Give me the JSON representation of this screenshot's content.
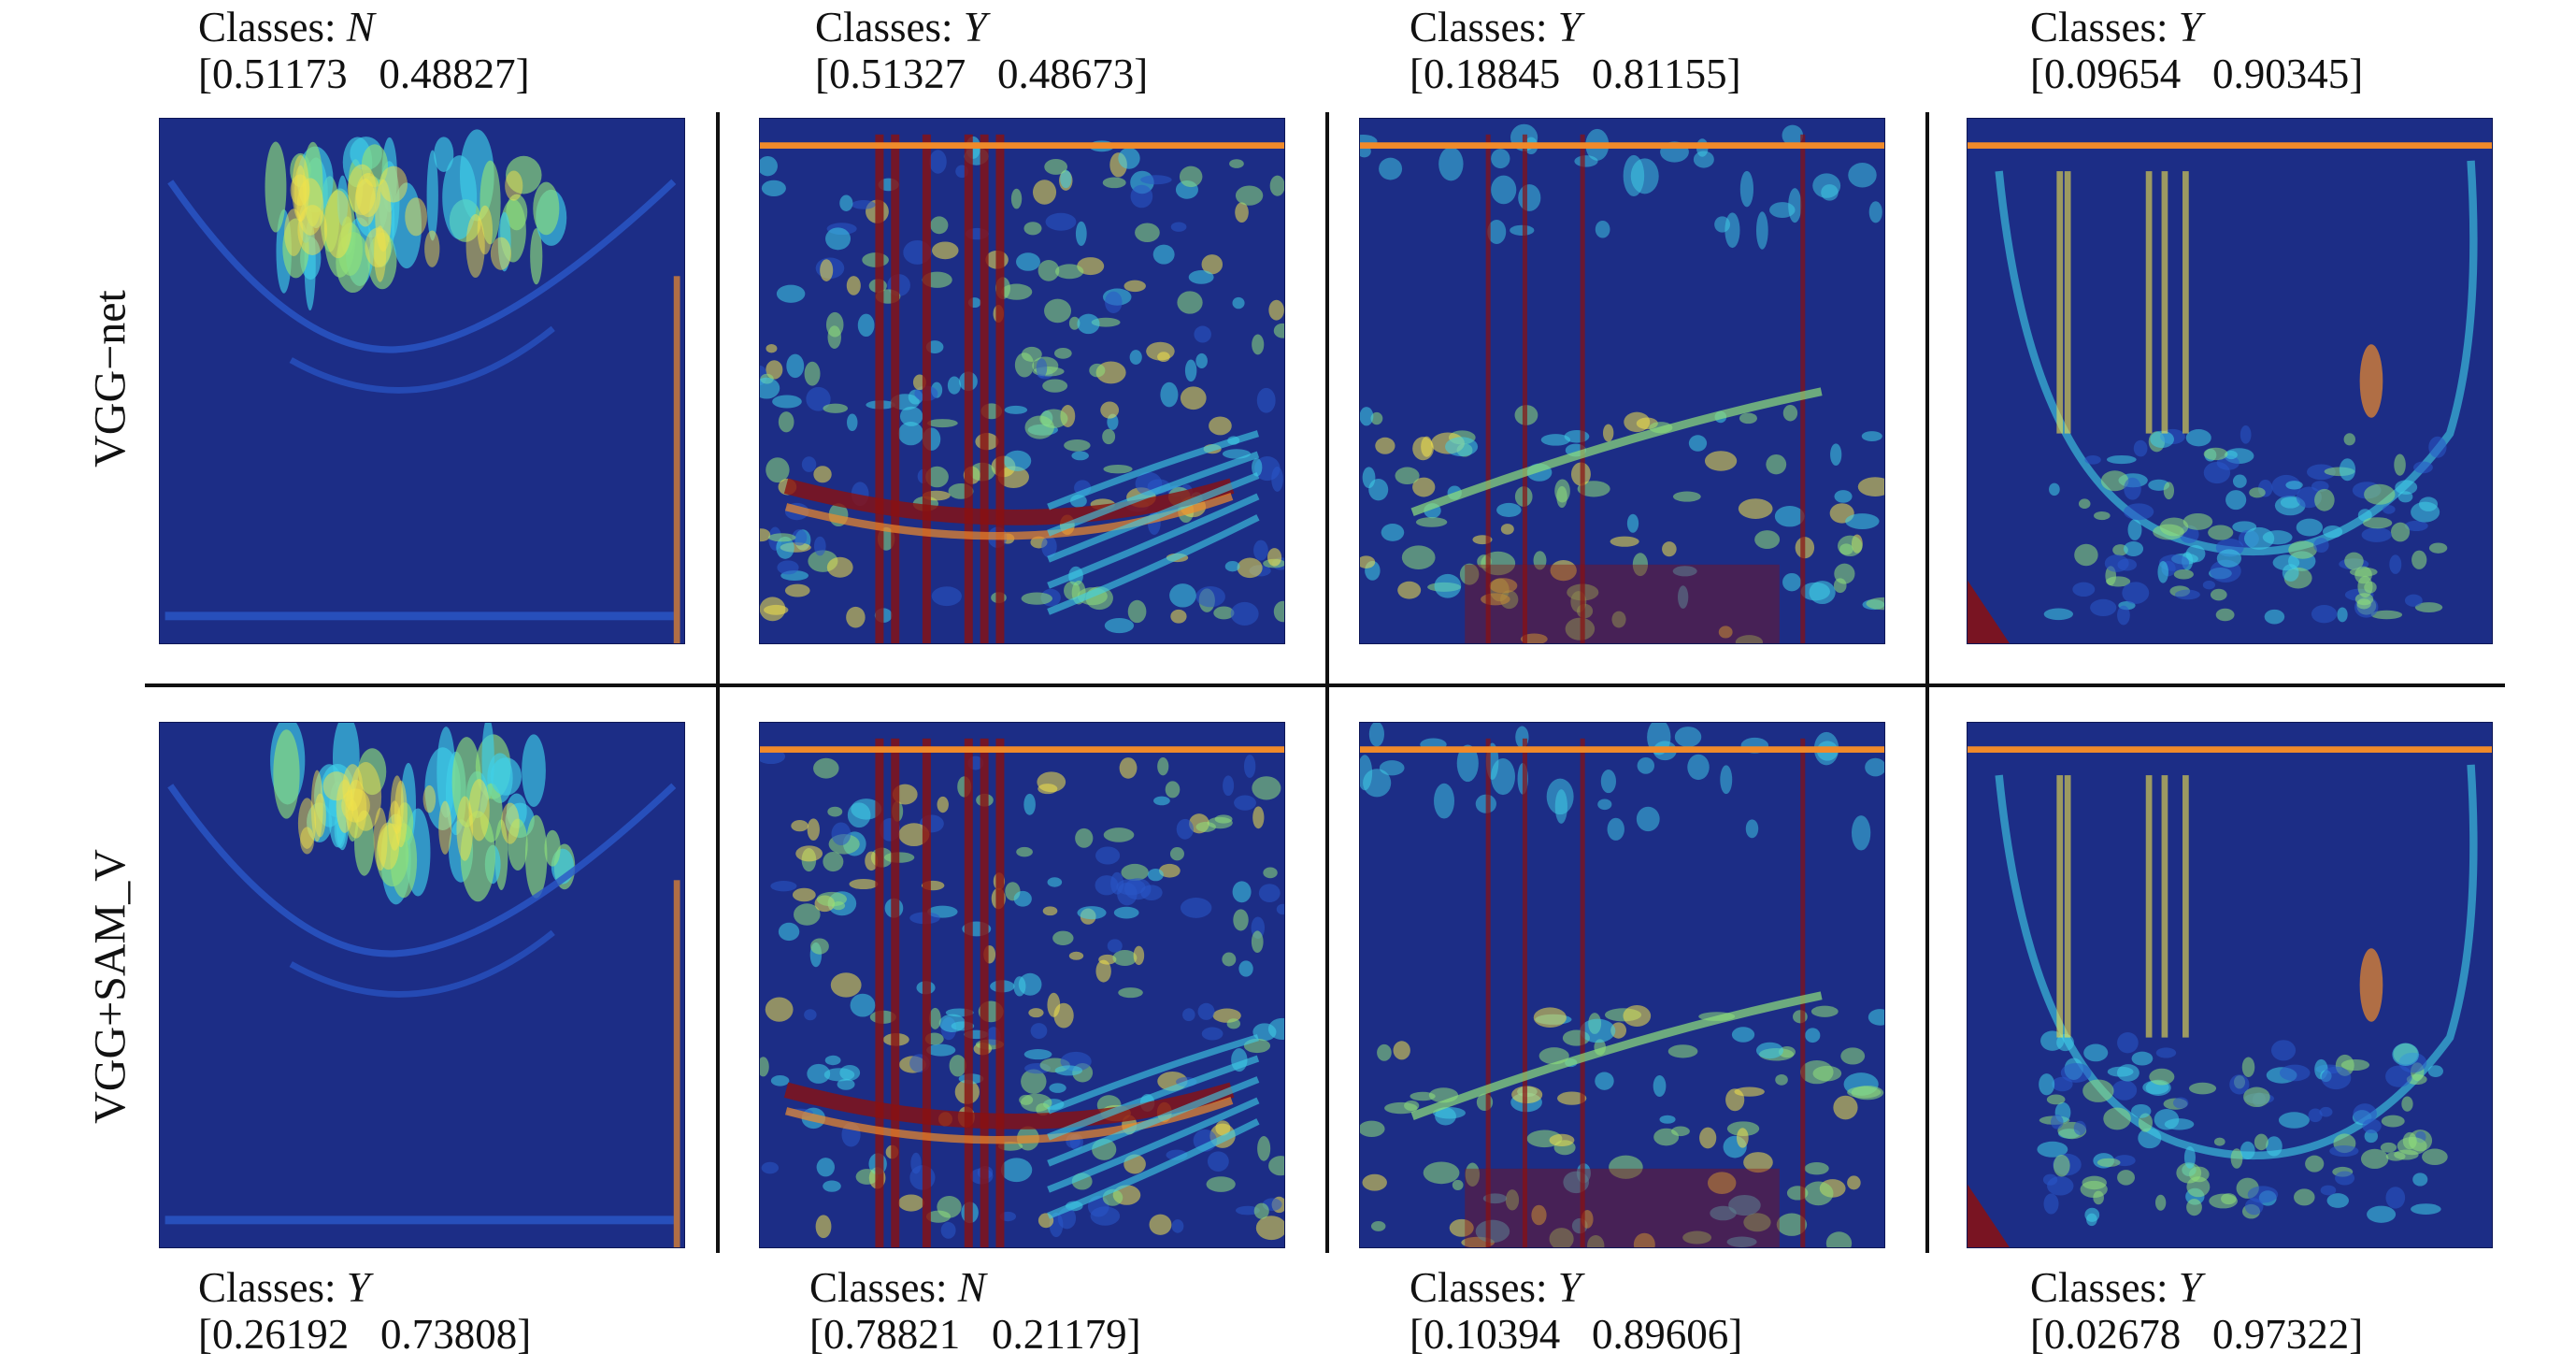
{
  "row_labels": [
    "VGG−net",
    "VGG+SAM_V"
  ],
  "rows": [
    {
      "panels": [
        {
          "class_prefix": "Classes: ",
          "class": "N",
          "probs": "[0.51173   0.48827]"
        },
        {
          "class_prefix": "Classes: ",
          "class": "Y",
          "probs": "[0.51327   0.48673]"
        },
        {
          "class_prefix": "Classes: ",
          "class": "Y",
          "probs": "[0.18845   0.81155]"
        },
        {
          "class_prefix": "Classes: ",
          "class": "Y",
          "probs": "[0.09654   0.90345]"
        }
      ]
    },
    {
      "panels": [
        {
          "class_prefix": "Classes: ",
          "class": "Y",
          "probs": "[0.26192   0.73808]"
        },
        {
          "class_prefix": "Classes: ",
          "class": "N",
          "probs": "[0.78821   0.21179]"
        },
        {
          "class_prefix": "Classes: ",
          "class": "Y",
          "probs": "[0.10394   0.89606]"
        },
        {
          "class_prefix": "Classes: ",
          "class": "Y",
          "probs": "[0.02678   0.97322]"
        }
      ]
    }
  ],
  "colors": {
    "background": "#1c2d86",
    "cold": "#2a57c8",
    "cyan": "#3fd0e8",
    "green": "#8fe07a",
    "yellow": "#f2e24a",
    "orange": "#f08a2a",
    "red": "#8a1010"
  }
}
